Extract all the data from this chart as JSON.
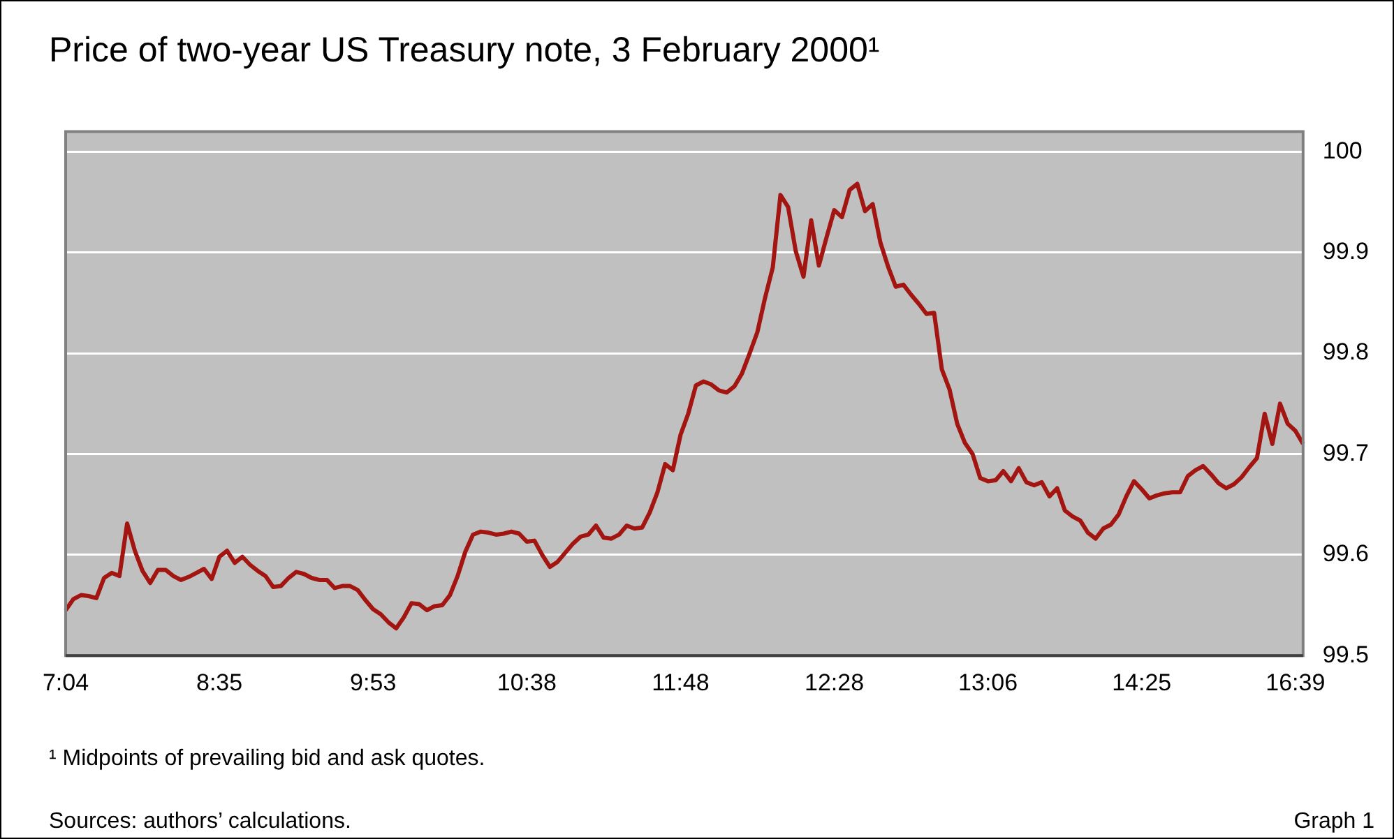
{
  "chart_data": {
    "type": "line",
    "title": "Price of two-year US Treasury note, 3 February 2000¹",
    "annotations": [
      "¹ Midpoints of prevailing bid and ask quotes.",
      "Sources: authors’ calculations.",
      "Graph 1"
    ],
    "categories": [
      "7:04",
      null,
      null,
      null,
      null,
      null,
      null,
      null,
      null,
      null,
      null,
      null,
      null,
      null,
      null,
      null,
      null,
      null,
      null,
      null,
      "8:35",
      null,
      null,
      null,
      null,
      null,
      null,
      null,
      null,
      null,
      null,
      null,
      null,
      null,
      null,
      null,
      null,
      null,
      null,
      null,
      "9:53",
      null,
      null,
      null,
      null,
      null,
      null,
      null,
      null,
      null,
      null,
      null,
      null,
      null,
      null,
      null,
      null,
      null,
      null,
      null,
      "10:38",
      null,
      null,
      null,
      null,
      null,
      null,
      null,
      null,
      null,
      null,
      null,
      null,
      null,
      null,
      null,
      null,
      null,
      null,
      null,
      "11:48",
      null,
      null,
      null,
      null,
      null,
      null,
      null,
      null,
      null,
      null,
      null,
      null,
      null,
      null,
      null,
      null,
      null,
      null,
      null,
      "12:28",
      null,
      null,
      null,
      null,
      null,
      null,
      null,
      null,
      null,
      null,
      null,
      null,
      null,
      null,
      null,
      null,
      null,
      null,
      null,
      "13:06",
      null,
      null,
      null,
      null,
      null,
      null,
      null,
      null,
      null,
      null,
      null,
      null,
      null,
      null,
      null,
      null,
      null,
      null,
      null,
      "14:25",
      null,
      null,
      null,
      null,
      null,
      null,
      null,
      null,
      null,
      null,
      null,
      null,
      null,
      null,
      null,
      null,
      null,
      null,
      null,
      "16:39",
      null
    ],
    "series": [
      {
        "color": "#a31510",
        "values": [
          99.545,
          99.556,
          99.56,
          99.559,
          99.557,
          99.577,
          99.582,
          99.579,
          99.631,
          99.604,
          99.584,
          99.572,
          99.585,
          99.585,
          99.579,
          99.575,
          99.578,
          99.582,
          99.586,
          99.576,
          99.598,
          99.604,
          99.592,
          99.598,
          99.59,
          99.584,
          99.579,
          99.568,
          99.569,
          99.577,
          99.583,
          99.581,
          99.577,
          99.575,
          99.575,
          99.567,
          99.569,
          99.569,
          99.565,
          99.555,
          99.546,
          99.541,
          99.533,
          99.527,
          99.538,
          99.552,
          99.551,
          99.545,
          99.549,
          99.55,
          99.56,
          99.579,
          99.603,
          99.62,
          99.623,
          99.622,
          99.62,
          99.621,
          99.623,
          99.621,
          99.613,
          99.614,
          99.6,
          99.588,
          99.593,
          99.602,
          99.611,
          99.618,
          99.62,
          99.629,
          99.617,
          99.616,
          99.62,
          99.629,
          99.626,
          99.627,
          99.642,
          99.662,
          99.69,
          99.684,
          99.719,
          99.74,
          99.768,
          99.772,
          99.769,
          99.763,
          99.761,
          99.767,
          99.78,
          99.8,
          99.821,
          99.855,
          99.885,
          99.957,
          99.945,
          99.901,
          99.876,
          99.932,
          99.887,
          99.915,
          99.942,
          99.935,
          99.962,
          99.968,
          99.941,
          99.948,
          99.91,
          99.886,
          99.866,
          99.868,
          99.858,
          99.849,
          99.839,
          99.84,
          99.784,
          99.764,
          99.73,
          99.711,
          99.7,
          99.676,
          99.673,
          99.674,
          99.683,
          99.673,
          99.686,
          99.672,
          99.669,
          99.672,
          99.658,
          99.666,
          99.644,
          99.638,
          99.634,
          99.622,
          99.616,
          99.626,
          99.63,
          99.64,
          99.658,
          99.673,
          99.665,
          99.656,
          99.659,
          99.661,
          99.662,
          99.662,
          99.678,
          99.684,
          99.688,
          99.68,
          99.671,
          99.666,
          99.67,
          99.677,
          99.687,
          99.696,
          99.74,
          99.71,
          99.75,
          99.73,
          99.723,
          99.71
        ]
      }
    ],
    "ylim": [
      99.5,
      100.02
    ],
    "yticks": [
      99.5,
      99.6,
      99.7,
      99.8,
      99.9,
      100
    ],
    "grid": "y",
    "legend": false,
    "marker": "none",
    "line_style": "solid"
  }
}
